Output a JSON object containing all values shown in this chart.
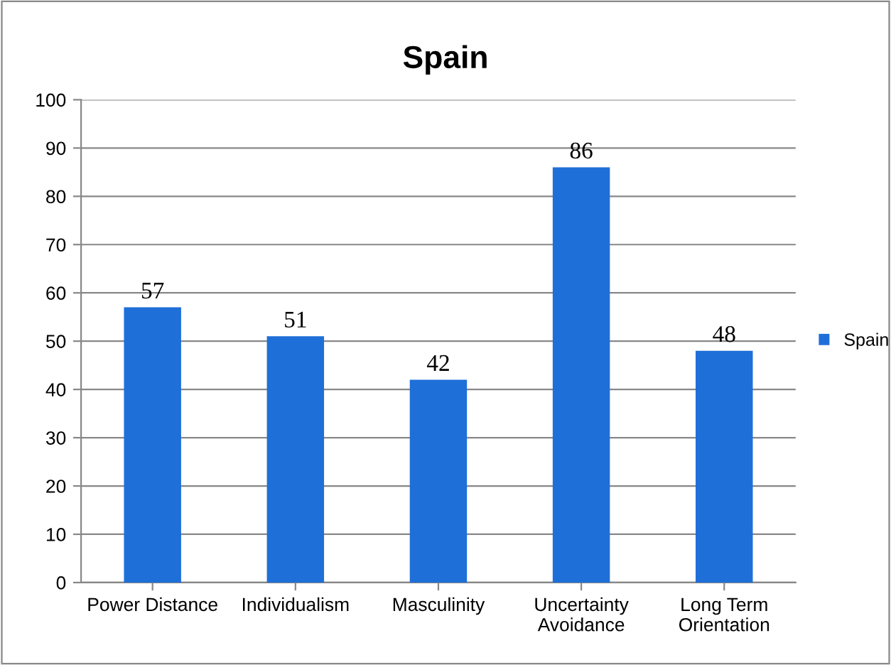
{
  "chart_data": {
    "type": "bar",
    "title": "Spain",
    "categories": [
      "Power Distance",
      "Individualism",
      "Masculinity",
      "Uncertainty\nAvoidance",
      "Long Term\nOrientation"
    ],
    "series": [
      {
        "name": "Spain",
        "color": "#1f6fd8",
        "values": [
          57,
          51,
          42,
          86,
          48
        ]
      }
    ],
    "ylim": [
      0,
      100
    ],
    "yticks": [
      0,
      10,
      20,
      30,
      40,
      50,
      60,
      70,
      80,
      90,
      100
    ],
    "grid": "y",
    "legend": "right",
    "data_labels": true
  }
}
